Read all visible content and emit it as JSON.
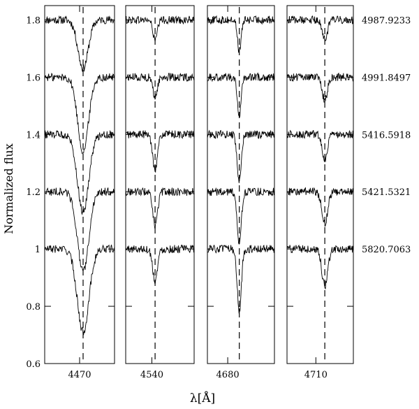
{
  "chart_data": {
    "type": "line",
    "ylabel": "Normalized flux",
    "xlabel": "λ[Å]",
    "ylim": [
      0.6,
      1.85
    ],
    "yticks": [
      0.6,
      0.8,
      1.0,
      1.2,
      1.4,
      1.6,
      1.8
    ],
    "ytick_labels": [
      "0.6",
      "0.8",
      "1",
      "1.2",
      "1.4",
      "1.6",
      "1.8"
    ],
    "grid": false,
    "epochs": [
      "4987.9233",
      "4991.8497",
      "5416.5918",
      "5421.5321",
      "5820.7063"
    ],
    "epoch_offsets": [
      1.8,
      1.6,
      1.4,
      1.2,
      1.0
    ],
    "panels": [
      {
        "xlim": [
          4455,
          4485
        ],
        "tick": 4470,
        "tick_label": "4470",
        "line_center": 4471.5,
        "depths": [
          0.17,
          0.26,
          0.27,
          0.28,
          0.29
        ],
        "widths": [
          2.2,
          2.3,
          2.4,
          2.4,
          2.5
        ]
      },
      {
        "xlim": [
          4527,
          4561
        ],
        "tick": 4540,
        "tick_label": "4540",
        "line_center": 4541.6,
        "depths": [
          0.07,
          0.07,
          0.12,
          0.12,
          0.11
        ],
        "widths": [
          1.1,
          1.1,
          1.2,
          1.2,
          1.2
        ]
      },
      {
        "xlim": [
          4670,
          4703
        ],
        "tick": 4680,
        "tick_label": "4680",
        "line_center": 4685.7,
        "depths": [
          0.11,
          0.14,
          0.17,
          0.18,
          0.22
        ],
        "widths": [
          0.9,
          0.9,
          1.0,
          1.0,
          1.0
        ]
      },
      {
        "xlim": [
          4700,
          4723
        ],
        "tick": 4710,
        "tick_label": "4710",
        "line_center": 4713.1,
        "depths": [
          0.07,
          0.08,
          0.09,
          0.11,
          0.13
        ],
        "widths": [
          0.9,
          0.9,
          0.9,
          1.0,
          1.0
        ]
      }
    ]
  }
}
